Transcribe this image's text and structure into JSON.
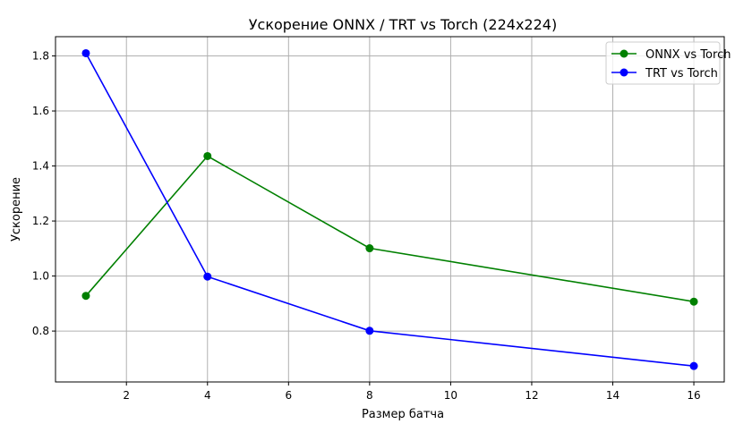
{
  "chart_data": {
    "type": "line",
    "title": "Ускорение ONNX / TRT vs Torch (224x224)",
    "xlabel": "Размер батча",
    "ylabel": "Ускорение",
    "x": [
      1,
      4,
      8,
      16
    ],
    "xlim": [
      0.25,
      16.75
    ],
    "ylim": [
      0.615,
      1.87
    ],
    "xticks": [
      2,
      4,
      6,
      8,
      10,
      12,
      14,
      16
    ],
    "yticks": [
      0.8,
      1.0,
      1.2,
      1.4,
      1.6,
      1.8
    ],
    "grid": true,
    "legend_position": "top-right",
    "series": [
      {
        "name": "ONNX vs Torch",
        "color": "#008000",
        "values": [
          0.928,
          1.436,
          1.101,
          0.907
        ]
      },
      {
        "name": "TRT vs Torch",
        "color": "#0000ff",
        "values": [
          1.81,
          0.998,
          0.801,
          0.673
        ]
      }
    ]
  }
}
